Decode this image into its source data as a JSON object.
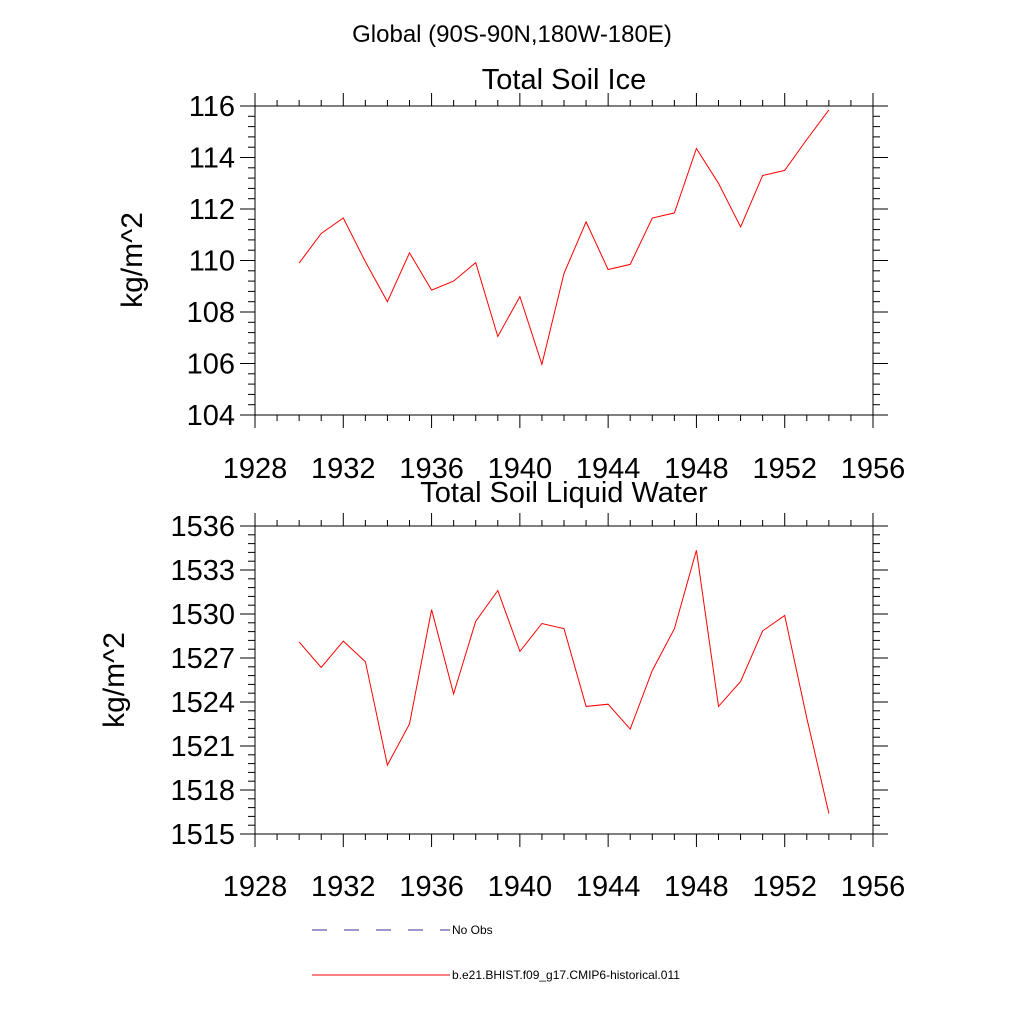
{
  "figure": {
    "title": "Global (90S-90N,180W-180E)"
  },
  "chart_data": [
    {
      "type": "line",
      "title": "Total Soil Ice",
      "xlabel": "",
      "ylabel": "kg/m^2",
      "xlim": [
        1928,
        1956
      ],
      "ylim": [
        104,
        116
      ],
      "x_ticks": [
        1928,
        1932,
        1936,
        1940,
        1944,
        1948,
        1952,
        1956
      ],
      "y_ticks": [
        104,
        106,
        108,
        110,
        112,
        114,
        116
      ],
      "grid": false,
      "series": [
        {
          "name": "b.e21.BHIST.f09_g17.CMIP6-historical.011",
          "color": "#ff0000",
          "x": [
            1930,
            1931,
            1932,
            1933,
            1934,
            1935,
            1936,
            1937,
            1938,
            1939,
            1940,
            1941,
            1942,
            1943,
            1944,
            1945,
            1946,
            1947,
            1948,
            1949,
            1950,
            1951,
            1952,
            1953,
            1954
          ],
          "values": [
            109.9,
            111.05,
            111.65,
            109.95,
            108.4,
            110.3,
            108.85,
            109.2,
            109.92,
            107.05,
            108.6,
            105.97,
            109.5,
            111.5,
            109.65,
            109.85,
            111.65,
            111.85,
            114.35,
            113.0,
            111.3,
            113.3,
            113.5,
            114.7,
            115.85
          ]
        }
      ]
    },
    {
      "type": "line",
      "title": "Total Soil Liquid Water",
      "xlabel": "",
      "ylabel": "kg/m^2",
      "xlim": [
        1928,
        1956
      ],
      "ylim": [
        1515,
        1536
      ],
      "x_ticks": [
        1928,
        1932,
        1936,
        1940,
        1944,
        1948,
        1952,
        1956
      ],
      "y_ticks": [
        1515,
        1518,
        1521,
        1524,
        1527,
        1530,
        1533,
        1536
      ],
      "grid": false,
      "series": [
        {
          "name": "b.e21.BHIST.f09_g17.CMIP6-historical.011",
          "color": "#ff0000",
          "x": [
            1930,
            1931,
            1932,
            1933,
            1934,
            1935,
            1936,
            1937,
            1938,
            1939,
            1940,
            1941,
            1942,
            1943,
            1944,
            1945,
            1946,
            1947,
            1948,
            1949,
            1950,
            1951,
            1952,
            1953,
            1954
          ],
          "values": [
            1528.1,
            1526.35,
            1528.15,
            1526.75,
            1519.7,
            1522.5,
            1530.3,
            1524.55,
            1529.5,
            1531.6,
            1527.45,
            1529.35,
            1529.0,
            1523.7,
            1523.85,
            1522.15,
            1526.15,
            1529.0,
            1534.35,
            1523.7,
            1525.4,
            1528.85,
            1529.9,
            1522.9,
            1516.4
          ]
        }
      ]
    }
  ],
  "legend": {
    "placement": "bottom-center",
    "items": [
      {
        "label": "No Obs",
        "color": "#333399",
        "style": "dashed"
      },
      {
        "label": "b.e21.BHIST.f09_g17.CMIP6-historical.011",
        "color": "#ff0000",
        "style": "solid"
      }
    ]
  }
}
